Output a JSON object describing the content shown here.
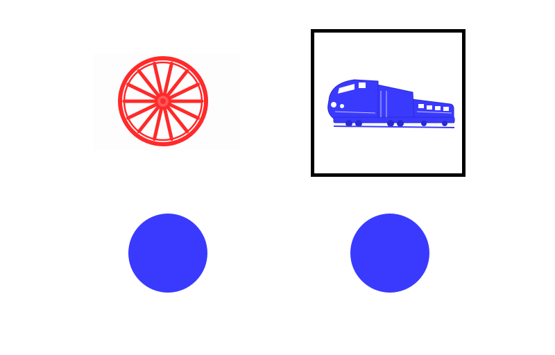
{
  "stimuli": [
    {
      "id": "left",
      "icon": "wagon-wheel-icon",
      "color": "#ff2a2a",
      "selected": false
    },
    {
      "id": "right",
      "icon": "train-locomotive-icon",
      "color": "#3a3aff",
      "selected": true
    }
  ],
  "response_buttons": [
    {
      "id": "left",
      "color": "#3a3aff"
    },
    {
      "id": "right",
      "color": "#3a3aff"
    }
  ],
  "selection_border_color": "#000000"
}
